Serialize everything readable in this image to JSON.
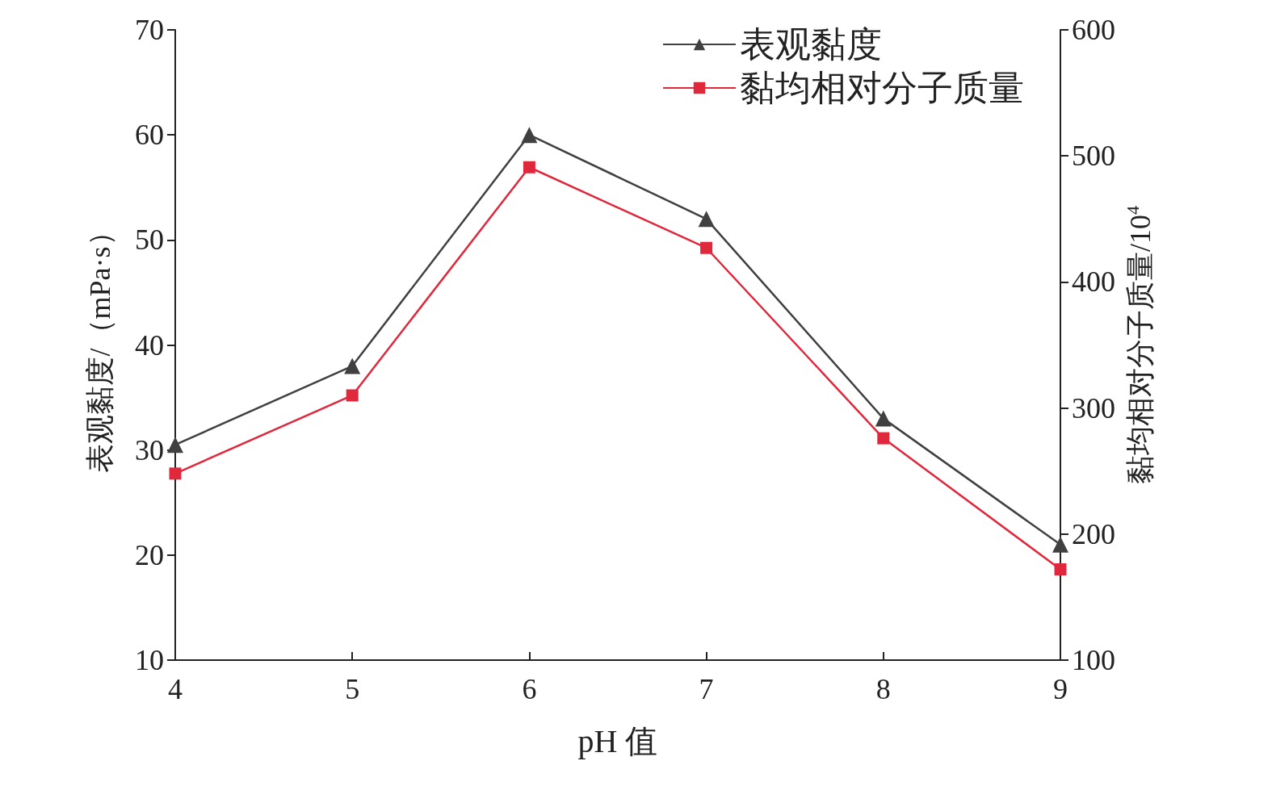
{
  "chart_data": {
    "type": "line",
    "xlabel": "pH 值",
    "ylabel": "表观黏度/（mPa·s）",
    "y2label": "黏均相对分子质量/10$^{4}$",
    "x": [
      4,
      5,
      6,
      7,
      8,
      9
    ],
    "series": [
      {
        "name": "表观黏度",
        "color": "#404040",
        "marker": "triangle",
        "values": [
          30.5,
          38.0,
          60.0,
          52.0,
          33.0,
          21.0
        ]
      },
      {
        "name": "黏均相对分子质量",
        "color": "#e0283c",
        "marker": "square",
        "axis": "y2",
        "values": [
          248,
          310,
          491,
          427,
          276,
          172
        ]
      }
    ],
    "xlim": [
      4,
      9
    ],
    "xticks": [
      4,
      5,
      6,
      7,
      8,
      9
    ],
    "ylim": [
      10,
      70
    ],
    "yticks": [
      10,
      20,
      30,
      40,
      50,
      60,
      70
    ],
    "y2lim": [
      100,
      600
    ],
    "y2ticks": [
      100,
      200,
      300,
      400,
      500,
      600
    ],
    "legend": "top right",
    "grid": false,
    "line_style": "solid"
  }
}
